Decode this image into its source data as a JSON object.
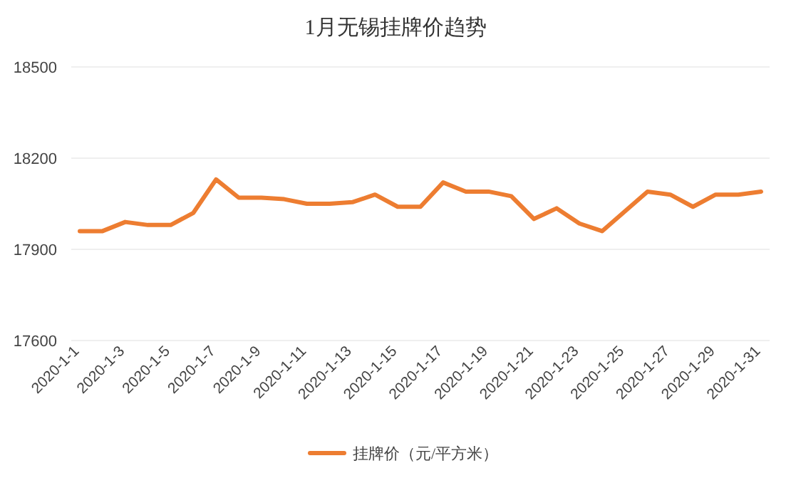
{
  "chart_data": {
    "type": "line",
    "title": "1月无锡挂牌价趋势",
    "categories": [
      "2020-1-1",
      null,
      "2020-1-3",
      null,
      "2020-1-5",
      null,
      "2020-1-7",
      null,
      "2020-1-9",
      null,
      "2020-1-11",
      null,
      "2020-1-13",
      null,
      "2020-1-15",
      null,
      "2020-1-17",
      null,
      "2020-1-19",
      null,
      "2020-1-21",
      null,
      "2020-1-23",
      null,
      "2020-1-25",
      null,
      "2020-1-27",
      null,
      "2020-1-29",
      null,
      "2020-1-31"
    ],
    "series": [
      {
        "name": "挂牌价（元/平方米）",
        "color": "#ed7d31",
        "values": [
          17960,
          17960,
          17990,
          17980,
          17980,
          18020,
          18130,
          18070,
          18070,
          18065,
          18050,
          18050,
          18055,
          18080,
          18040,
          18040,
          18120,
          18090,
          18090,
          18075,
          18000,
          18035,
          17985,
          17960,
          18025,
          18090,
          18080,
          18040,
          18080,
          18080,
          18090
        ]
      }
    ],
    "ylim": [
      17600,
      18500
    ],
    "yticks": [
      17600,
      17900,
      18200,
      18500
    ],
    "grid": "y",
    "legend": "bottom",
    "marker": "none",
    "line_style": "solid"
  }
}
